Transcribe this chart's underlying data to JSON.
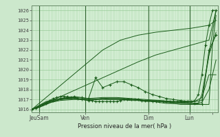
{
  "title": "Pression niveau de la mer( hPa )",
  "ylabel_values": [
    1016,
    1017,
    1018,
    1019,
    1020,
    1021,
    1022,
    1023,
    1024,
    1025,
    1026
  ],
  "ylim": [
    1015.7,
    1026.5
  ],
  "xlim": [
    0,
    105
  ],
  "bg_color": "#cce8cc",
  "plot_bg": "#d8f0d8",
  "grid_color": "#99cc99",
  "line_color": "#1a5c1a",
  "x_tick_positions": [
    4,
    30,
    66,
    89,
    102
  ],
  "x_labels": [
    "JeuSam",
    "Ven",
    "Dim",
    "Lun",
    ""
  ],
  "day_lines": [
    4,
    30,
    66,
    89
  ],
  "num_minor_x": 100,
  "series": [
    {
      "x": [
        0,
        2,
        4,
        6,
        8,
        10,
        12,
        14,
        16,
        18,
        20,
        22,
        24,
        26,
        28,
        30,
        32,
        34,
        36,
        38,
        40,
        42,
        44,
        46,
        48,
        50,
        52,
        54,
        56,
        58,
        60,
        62,
        64,
        66,
        68,
        70,
        72,
        74,
        76,
        78,
        80,
        82,
        84,
        86,
        88,
        90,
        92,
        94,
        96,
        98,
        100,
        102,
        104
      ],
      "y": [
        1016,
        1016.1,
        1016.3,
        1016.5,
        1016.7,
        1016.9,
        1017.1,
        1017.2,
        1017.3,
        1017.3,
        1017.3,
        1017.2,
        1017.2,
        1017.1,
        1017.0,
        1017.0,
        1016.9,
        1016.9,
        1016.8,
        1016.8,
        1016.8,
        1016.8,
        1016.8,
        1016.8,
        1016.8,
        1016.9,
        1017.0,
        1017.0,
        1017.0,
        1017.0,
        1017.0,
        1016.9,
        1016.9,
        1016.9,
        1016.8,
        1016.8,
        1016.8,
        1016.8,
        1016.8,
        1016.8,
        1016.8,
        1016.8,
        1016.8,
        1016.8,
        1016.8,
        1016.8,
        1016.9,
        1017.5,
        1019.5,
        1022.5,
        1024.5,
        1026.0,
        1026.0
      ],
      "marker": "+",
      "markersize": 2.5
    },
    {
      "x": [
        0,
        4,
        8,
        12,
        16,
        20,
        24,
        28,
        32,
        36,
        40,
        44,
        48,
        52,
        56,
        60,
        64,
        68,
        72,
        76,
        80,
        84,
        88,
        92,
        96,
        100,
        104
      ],
      "y": [
        1016,
        1016.3,
        1016.6,
        1016.9,
        1017.1,
        1017.2,
        1017.3,
        1017.2,
        1017.1,
        1019.2,
        1018.2,
        1018.5,
        1018.8,
        1018.8,
        1018.5,
        1018.2,
        1017.8,
        1017.5,
        1017.3,
        1017.1,
        1017.0,
        1016.9,
        1016.8,
        1016.6,
        1016.5,
        1022.0,
        1023.5
      ],
      "marker": "+",
      "markersize": 2.5
    },
    {
      "x": [
        0,
        4,
        8,
        12,
        16,
        20,
        24,
        28,
        32,
        36,
        40,
        44,
        48,
        52,
        56,
        60,
        64,
        68,
        72,
        76,
        80,
        84,
        88,
        92,
        96,
        100,
        102,
        104
      ],
      "y": [
        1016,
        1016.2,
        1016.5,
        1016.8,
        1017.0,
        1017.1,
        1017.1,
        1017.0,
        1016.9,
        1017.0,
        1017.1,
        1017.1,
        1017.1,
        1017.1,
        1017.0,
        1017.0,
        1016.9,
        1016.8,
        1016.8,
        1016.7,
        1016.6,
        1016.6,
        1016.6,
        1016.5,
        1016.5,
        1016.5,
        1022.5,
        1025.5
      ],
      "marker": null,
      "markersize": 0
    },
    {
      "x": [
        0,
        4,
        8,
        12,
        16,
        20,
        24,
        28,
        32,
        36,
        40,
        44,
        48,
        52,
        56,
        60,
        64,
        68,
        72,
        76,
        80,
        84,
        88,
        90,
        92,
        94,
        96,
        98,
        100,
        102,
        104
      ],
      "y": [
        1016,
        1016.2,
        1016.5,
        1016.8,
        1017.0,
        1017.1,
        1017.1,
        1017.0,
        1016.9,
        1017.0,
        1017.1,
        1017.0,
        1017.0,
        1017.0,
        1017.0,
        1016.9,
        1016.8,
        1016.8,
        1016.7,
        1016.6,
        1016.6,
        1016.5,
        1016.5,
        1016.5,
        1016.5,
        1016.6,
        1017.5,
        1019.5,
        1021.5,
        1023.8,
        1026.0
      ],
      "marker": null,
      "markersize": 0
    },
    {
      "x": [
        0,
        8,
        16,
        24,
        32,
        40,
        48,
        56,
        64,
        72,
        80,
        88,
        92,
        96,
        100,
        104
      ],
      "y": [
        1016,
        1016.8,
        1017.1,
        1017.2,
        1017.1,
        1017.2,
        1017.2,
        1017.1,
        1017.0,
        1016.9,
        1016.8,
        1016.8,
        1016.8,
        1016.9,
        1021.5,
        1023.8
      ],
      "marker": null,
      "markersize": 0
    },
    {
      "x": [
        0,
        8,
        16,
        24,
        32,
        40,
        48,
        56,
        64,
        72,
        80,
        88,
        92,
        96,
        100,
        104
      ],
      "y": [
        1016,
        1016.7,
        1017.0,
        1017.1,
        1017.0,
        1017.1,
        1017.1,
        1017.0,
        1016.9,
        1016.9,
        1016.7,
        1016.7,
        1016.8,
        1017.2,
        1019.5,
        1019.5
      ],
      "marker": null,
      "markersize": 0
    },
    {
      "x": [
        0,
        8,
        16,
        24,
        32,
        40,
        48,
        56,
        64,
        72,
        80,
        88,
        92,
        96,
        100,
        104
      ],
      "y": [
        1016,
        1016.6,
        1016.9,
        1017.0,
        1017.0,
        1017.0,
        1017.0,
        1016.9,
        1016.9,
        1016.8,
        1016.7,
        1016.6,
        1016.6,
        1016.7,
        1018.0,
        1021.0
      ],
      "marker": null,
      "markersize": 0
    },
    {
      "x": [
        0,
        10,
        20,
        30,
        40,
        50,
        60,
        70,
        80,
        90,
        100,
        104
      ],
      "y": [
        1016,
        1017.5,
        1019.0,
        1020.5,
        1022.0,
        1023.0,
        1023.5,
        1023.8,
        1024.0,
        1024.2,
        1024.5,
        1025.0
      ],
      "marker": null,
      "markersize": 0
    },
    {
      "x": [
        0,
        10,
        20,
        30,
        40,
        50,
        60,
        70,
        80,
        90,
        100,
        102,
        104
      ],
      "y": [
        1016,
        1016.8,
        1017.6,
        1018.4,
        1019.2,
        1020.0,
        1020.8,
        1021.5,
        1022.0,
        1022.5,
        1023.0,
        1024.5,
        1026.0
      ],
      "marker": null,
      "markersize": 0
    }
  ]
}
